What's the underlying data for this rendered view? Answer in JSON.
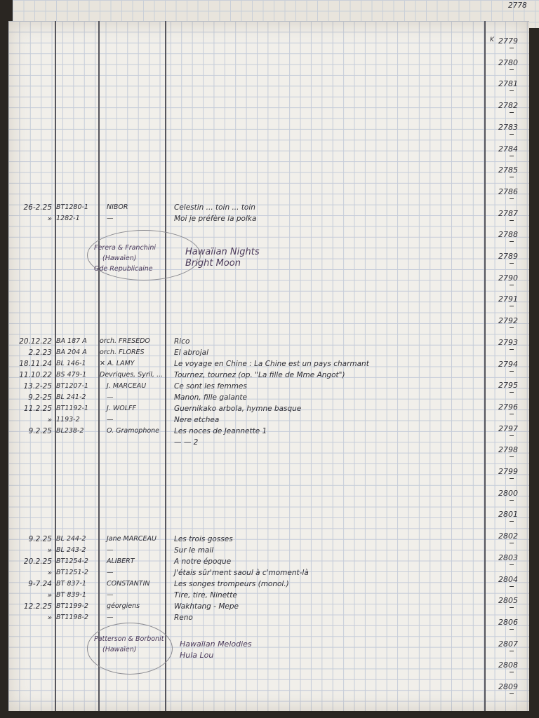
{
  "header": {
    "prev_page_number": "2778",
    "column_letter": "K"
  },
  "line_numbers": [
    "2779",
    "2780",
    "2781",
    "2782",
    "2783",
    "2784",
    "2785",
    "2786",
    "2787",
    "2788",
    "2789",
    "2790",
    "2791",
    "2792",
    "2793",
    "2794",
    "2795",
    "2796",
    "2797",
    "2798",
    "2799",
    "2800",
    "2801",
    "2802",
    "2803",
    "2804",
    "2805",
    "2806",
    "2807",
    "2808",
    "2809"
  ],
  "entries": [
    {
      "date": "26-2.25",
      "ref": "BT1280-1",
      "artist": "NIBOR",
      "title": "Celestin ... toin ... toin"
    },
    {
      "date": "»",
      "ref": "1282-1",
      "artist": "—",
      "title": "Moi je préfère la polka"
    },
    {
      "date": "20.12.22",
      "ref": "BA 187 A",
      "artist": "orch. FRESEDO",
      "title": "Rico"
    },
    {
      "date": "2.2.23",
      "ref": "BA 204 A",
      "artist": "orch. FLORES",
      "title": "El abrojal"
    },
    {
      "date": "18.11.24",
      "ref": "BL 146-1",
      "artist": "✕ A. LAMY",
      "title": "Le voyage en Chine : La Chine est un pays charmant"
    },
    {
      "date": "11.10.22",
      "ref": "BS 479-1",
      "artist": "Devriques, Syril, ...",
      "title": "Tournez, tournez  (op. \"La fille de Mme Angot\")"
    },
    {
      "date": "13.2-25",
      "ref": "BT1207-1",
      "artist": "J. MARCEAU",
      "title": "Ce sont les femmes"
    },
    {
      "date": "9.2-25",
      "ref": "BL 241-2",
      "artist": "—",
      "title": "Manon, fille galante"
    },
    {
      "date": "11.2.25",
      "ref": "BT1192-1",
      "artist": "J. WOLFF",
      "title": "Guernikako arbola, hymne basque"
    },
    {
      "date": "»",
      "ref": "1193-2",
      "artist": "—",
      "title": "Nere etchea"
    },
    {
      "date": "9.2.25",
      "ref": "BL238-2",
      "artist": "O. Gramophone",
      "title": "Les noces de Jeannette        1"
    },
    {
      "date": "",
      "ref": "",
      "artist": "",
      "title": "      —            —            2"
    },
    {
      "date": "9.2.25",
      "ref": "BL 244-2",
      "artist": "Jane MARCEAU",
      "title": "Les trois gosses"
    },
    {
      "date": "»",
      "ref": "BL 243-2",
      "artist": "—",
      "title": "Sur le mail"
    },
    {
      "date": "20.2.25",
      "ref": "BT1254-2",
      "artist": "ALIBERT",
      "title": "A notre époque"
    },
    {
      "date": "»",
      "ref": "BT1251-2",
      "artist": "—",
      "title": "J'étais sûr'ment saoul  à c'moment-là"
    },
    {
      "date": "9-7.24",
      "ref": "BT 837-1",
      "artist": "CONSTANTIN",
      "title": "Les songes trompeurs       (monol.)"
    },
    {
      "date": "»",
      "ref": "BT 839-1",
      "artist": "—",
      "title": "Tire, tire, Ninette"
    },
    {
      "date": "12.2.25",
      "ref": "BT1199-2",
      "artist": "géorgiens",
      "title": "Wakhtang - Mepe"
    },
    {
      "date": "»",
      "ref": "BT1198-2",
      "artist": "—",
      "title": "Reno"
    }
  ],
  "circled_notes": [
    {
      "artist_lines": [
        "Ferera & Franchini",
        "(Hawaïen)",
        "Gde Republicaine"
      ],
      "title_lines": [
        "Hawaïian Nights",
        "Bright Moon"
      ]
    },
    {
      "artist_lines": [
        "Patterson & Borbonit",
        "(Hawaïen)"
      ],
      "title_lines": [
        "Hawaïian Melodies",
        "Hula Lou"
      ]
    }
  ]
}
